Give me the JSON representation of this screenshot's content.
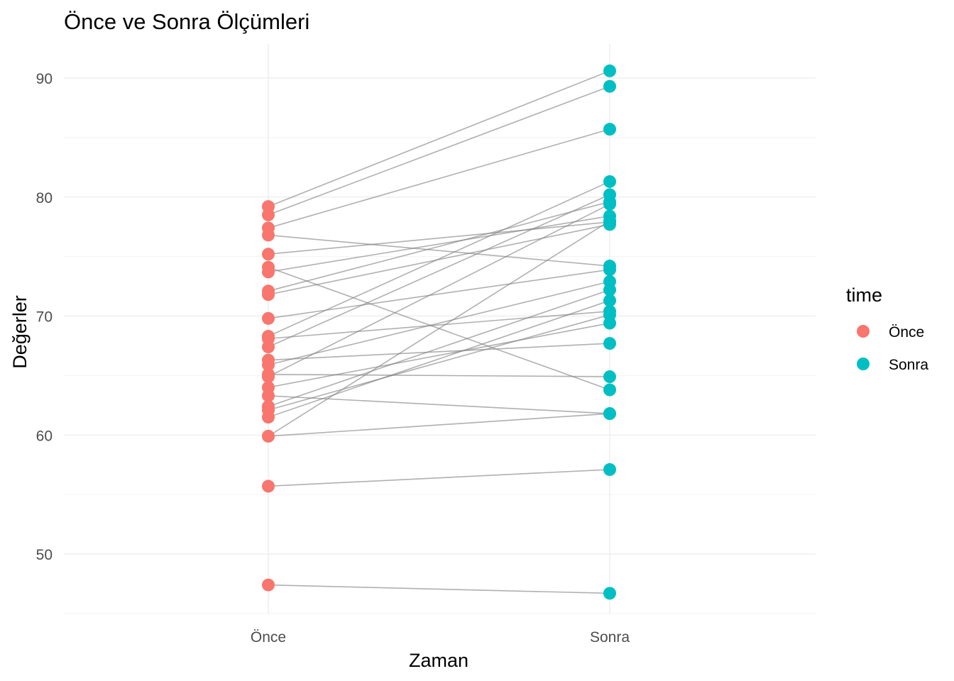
{
  "chart_data": {
    "type": "scatter",
    "title": "Önce ve Sonra Ölçümleri",
    "xlabel": "Zaman",
    "ylabel": "Değerler",
    "categories": [
      "Önce",
      "Sonra"
    ],
    "ylim": [
      45,
      93
    ],
    "yticks": [
      50,
      60,
      70,
      80,
      90
    ],
    "grid": true,
    "legend": {
      "title": "time",
      "placement": "right",
      "entries": [
        {
          "label": "Önce",
          "color": "#F8766D"
        },
        {
          "label": "Sonra",
          "color": "#00BFC4"
        }
      ]
    },
    "pairs": [
      {
        "before": 79.2,
        "after": 90.6
      },
      {
        "before": 78.5,
        "after": 89.3
      },
      {
        "before": 77.4,
        "after": 85.7
      },
      {
        "before": 76.8,
        "after": 74.2
      },
      {
        "before": 75.2,
        "after": 77.9
      },
      {
        "before": 74.1,
        "after": 63.8
      },
      {
        "before": 73.7,
        "after": 78.4
      },
      {
        "before": 72.1,
        "after": 79.6
      },
      {
        "before": 71.8,
        "after": 77.7
      },
      {
        "before": 69.8,
        "after": 73.9
      },
      {
        "before": 68.3,
        "after": 81.3
      },
      {
        "before": 68.1,
        "after": 70.4
      },
      {
        "before": 67.4,
        "after": 80.2
      },
      {
        "before": 66.3,
        "after": 67.7
      },
      {
        "before": 65.9,
        "after": 72.9
      },
      {
        "before": 65.1,
        "after": 64.9
      },
      {
        "before": 64.9,
        "after": 79.4
      },
      {
        "before": 64.0,
        "after": 69.4
      },
      {
        "before": 63.3,
        "after": 61.8
      },
      {
        "before": 62.4,
        "after": 72.2
      },
      {
        "before": 62.1,
        "after": 70.1
      },
      {
        "before": 61.5,
        "after": 71.3
      },
      {
        "before": 59.9,
        "after": 78.0
      },
      {
        "before": 59.9,
        "after": 61.8
      },
      {
        "before": 55.7,
        "after": 57.1
      },
      {
        "before": 47.4,
        "after": 46.7
      }
    ],
    "colors": {
      "before": "#F8766D",
      "after": "#00BFC4"
    }
  }
}
